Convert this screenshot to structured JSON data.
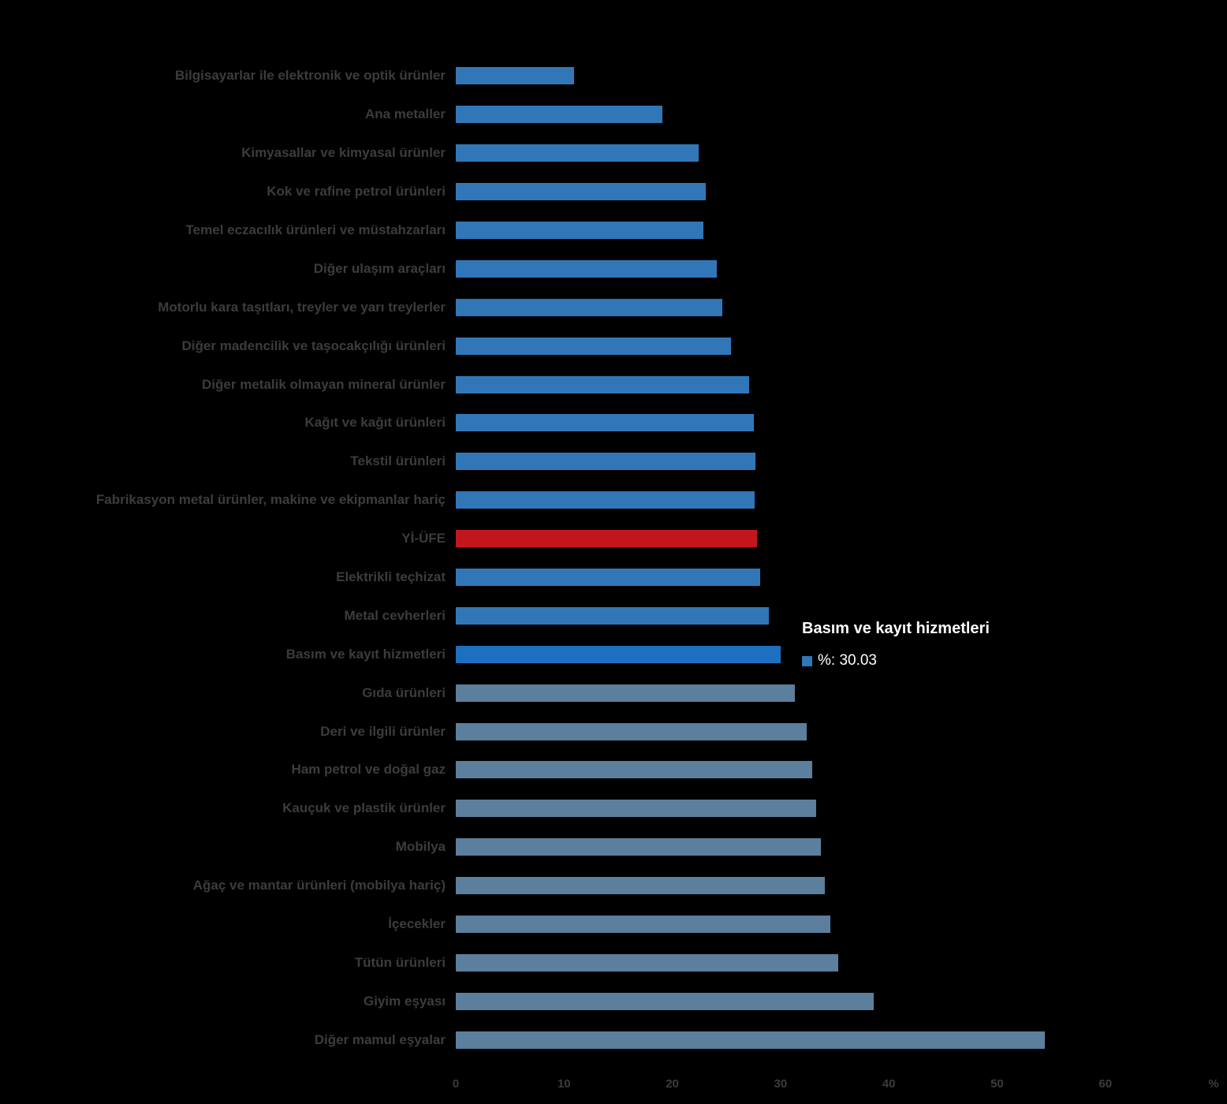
{
  "chart_data": {
    "type": "bar",
    "orientation": "horizontal",
    "title": "",
    "xlabel": "",
    "ylabel": "",
    "xlim": [
      0,
      70
    ],
    "xticks": [
      "0",
      "10",
      "20",
      "30",
      "40",
      "50",
      "60"
    ],
    "xtick_values": [
      0,
      10,
      20,
      30,
      40,
      50,
      60
    ],
    "x_unit_label": "%",
    "grid": false,
    "legend_position": "none",
    "categories": [
      "Bilgisayarlar ile elektronik ve optik ürünler",
      "Ana metaller",
      "Kimyasallar ve kimyasal ürünler",
      "Kok ve rafine petrol ürünleri",
      "Temel eczacılık ürünleri ve müstahzarları",
      "Diğer ulaşım araçları",
      "Motorlu kara taşıtları, treyler ve yarı treylerler",
      "Diğer madencilik ve taşocakçılığı ürünleri",
      "Diğer metalik olmayan mineral ürünler",
      "Kağıt ve kağıt ürünleri",
      "Tekstil ürünleri",
      "Fabrikasyon metal ürünler, makine ve ekipmanlar hariç",
      "Yİ-ÜFE",
      "Elektrikli teçhizat",
      "Metal cevherleri",
      "Basım ve kayıt hizmetleri",
      "Gıda ürünleri",
      "Deri ve ilgili ürünler",
      "Ham petrol ve doğal gaz",
      "Kauçuk ve plastik ürünler",
      "Mobilya",
      "Ağaç ve mantar ürünleri (mobilya hariç)",
      "İçecekler",
      "Tütün ürünleri",
      "Giyim eşyası",
      "Diğer mamul eşyalar"
    ],
    "values": [
      10.9,
      19.1,
      22.4,
      23.1,
      22.9,
      24.1,
      24.6,
      25.4,
      27.1,
      27.5,
      27.7,
      27.6,
      27.8,
      28.1,
      28.9,
      30.03,
      31.3,
      32.4,
      32.9,
      33.3,
      33.7,
      34.1,
      34.6,
      35.3,
      38.6,
      54.4
    ],
    "bar_states": [
      "normal",
      "normal",
      "normal",
      "normal",
      "normal",
      "normal",
      "normal",
      "normal",
      "normal",
      "normal",
      "normal",
      "normal",
      "index",
      "normal",
      "normal",
      "emphasis",
      "dim",
      "dim",
      "dim",
      "dim",
      "dim",
      "dim",
      "dim",
      "dim",
      "dim",
      "dim"
    ],
    "palette": {
      "normal": "#3177b8",
      "dim": "#5b7f9c",
      "emphasis": "#1d6fc0",
      "index": "#c3161c"
    },
    "label_color": "#3c3c3c",
    "tick_color": "#3c3c3c"
  },
  "tooltip": {
    "title": "Basım ve kayıt hizmetleri",
    "series_marker_color": "#3177b8",
    "value_line": "%: 30.03",
    "percent_value": "30.03"
  }
}
